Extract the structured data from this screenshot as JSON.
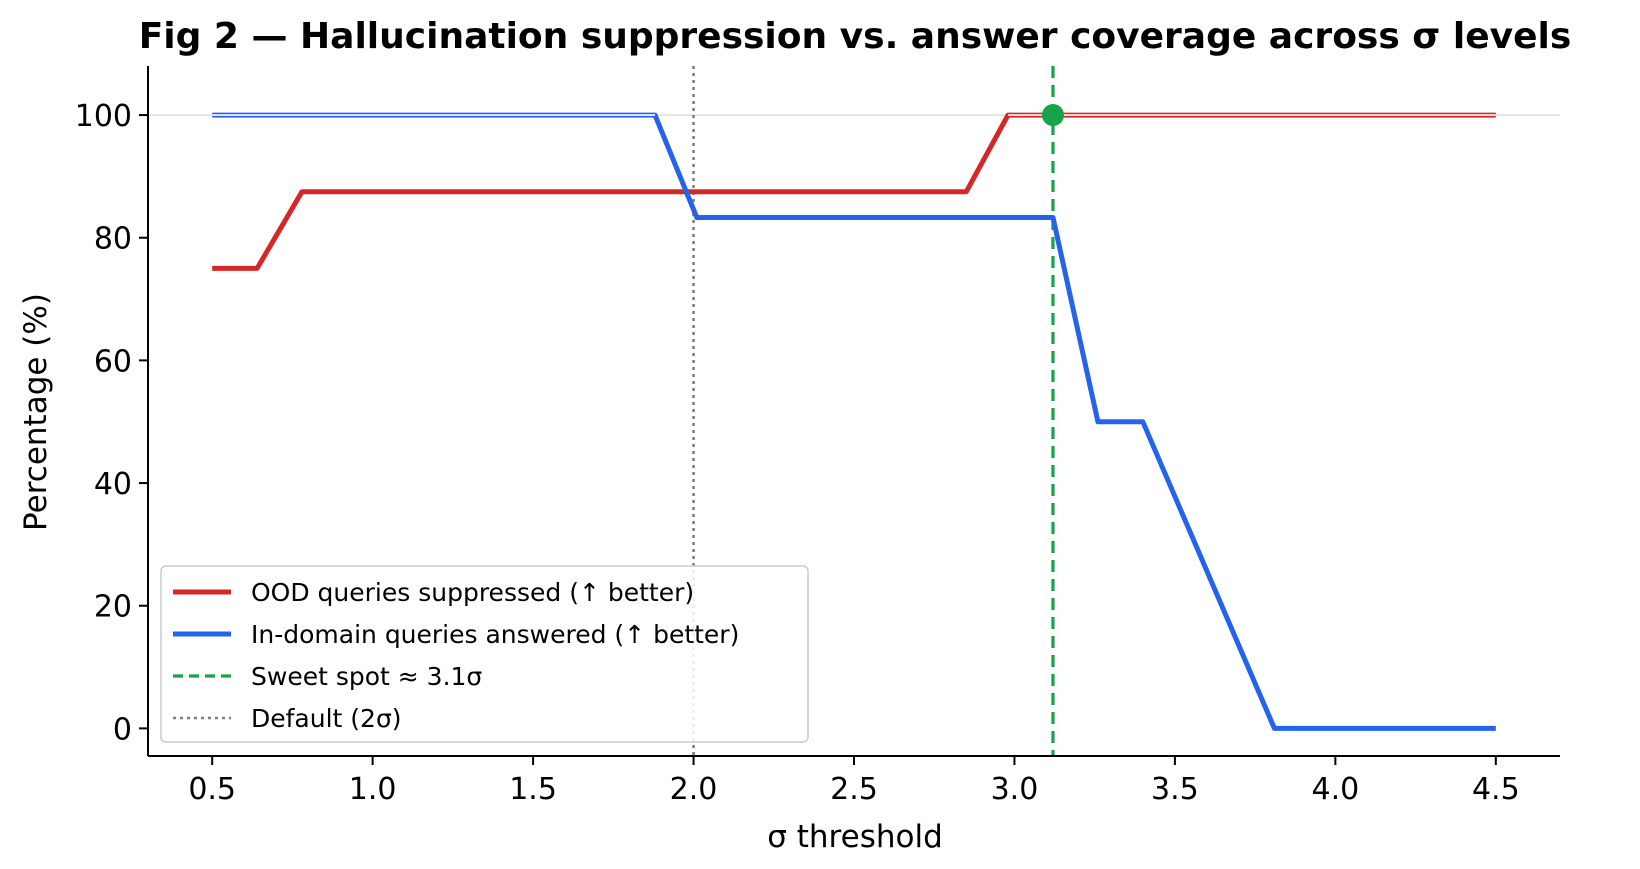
{
  "chart_data": {
    "type": "line",
    "title": "Fig 2 — Hallucination suppression vs. answer coverage across σ levels",
    "xlabel": "σ threshold",
    "ylabel": "Percentage (%)",
    "xlim": [
      0.3,
      4.7
    ],
    "ylim": [
      -4.5,
      108
    ],
    "xticks": [
      0.5,
      1.0,
      1.5,
      2.0,
      2.5,
      3.0,
      3.5,
      4.0,
      4.5
    ],
    "xtick_labels": [
      "0.5",
      "1.0",
      "1.5",
      "2.0",
      "2.5",
      "3.0",
      "3.5",
      "4.0",
      "4.5"
    ],
    "yticks": [
      0,
      20,
      40,
      60,
      80,
      100
    ],
    "ytick_labels": [
      "0",
      "20",
      "40",
      "60",
      "80",
      "100"
    ],
    "grid": false,
    "reference_line_y": 100,
    "series": [
      {
        "name": "OOD queries suppressed (↑ better)",
        "color": "#d62728",
        "x": [
          0.5,
          0.64,
          0.78,
          2.85,
          2.98,
          4.5
        ],
        "y": [
          75,
          75,
          87.5,
          87.5,
          100,
          100
        ]
      },
      {
        "name": "In-domain queries answered (↑ better)",
        "color": "#2563eb",
        "x": [
          0.5,
          1.88,
          2.01,
          3.12,
          3.26,
          3.4,
          3.81,
          4.5
        ],
        "y": [
          100,
          100,
          83.3,
          83.3,
          50,
          50,
          0,
          0
        ]
      }
    ],
    "vlines": [
      {
        "name": "Sweet spot ≈ 3.1σ",
        "x": 3.12,
        "style": "dashed",
        "color": "#16a34a"
      },
      {
        "name": "Default (2σ)",
        "x": 2.0,
        "style": "dotted",
        "color": "#7f7f7f"
      }
    ],
    "marker": {
      "x": 3.12,
      "y": 100,
      "color": "#16a34a"
    },
    "legend_position": "lower-left"
  }
}
